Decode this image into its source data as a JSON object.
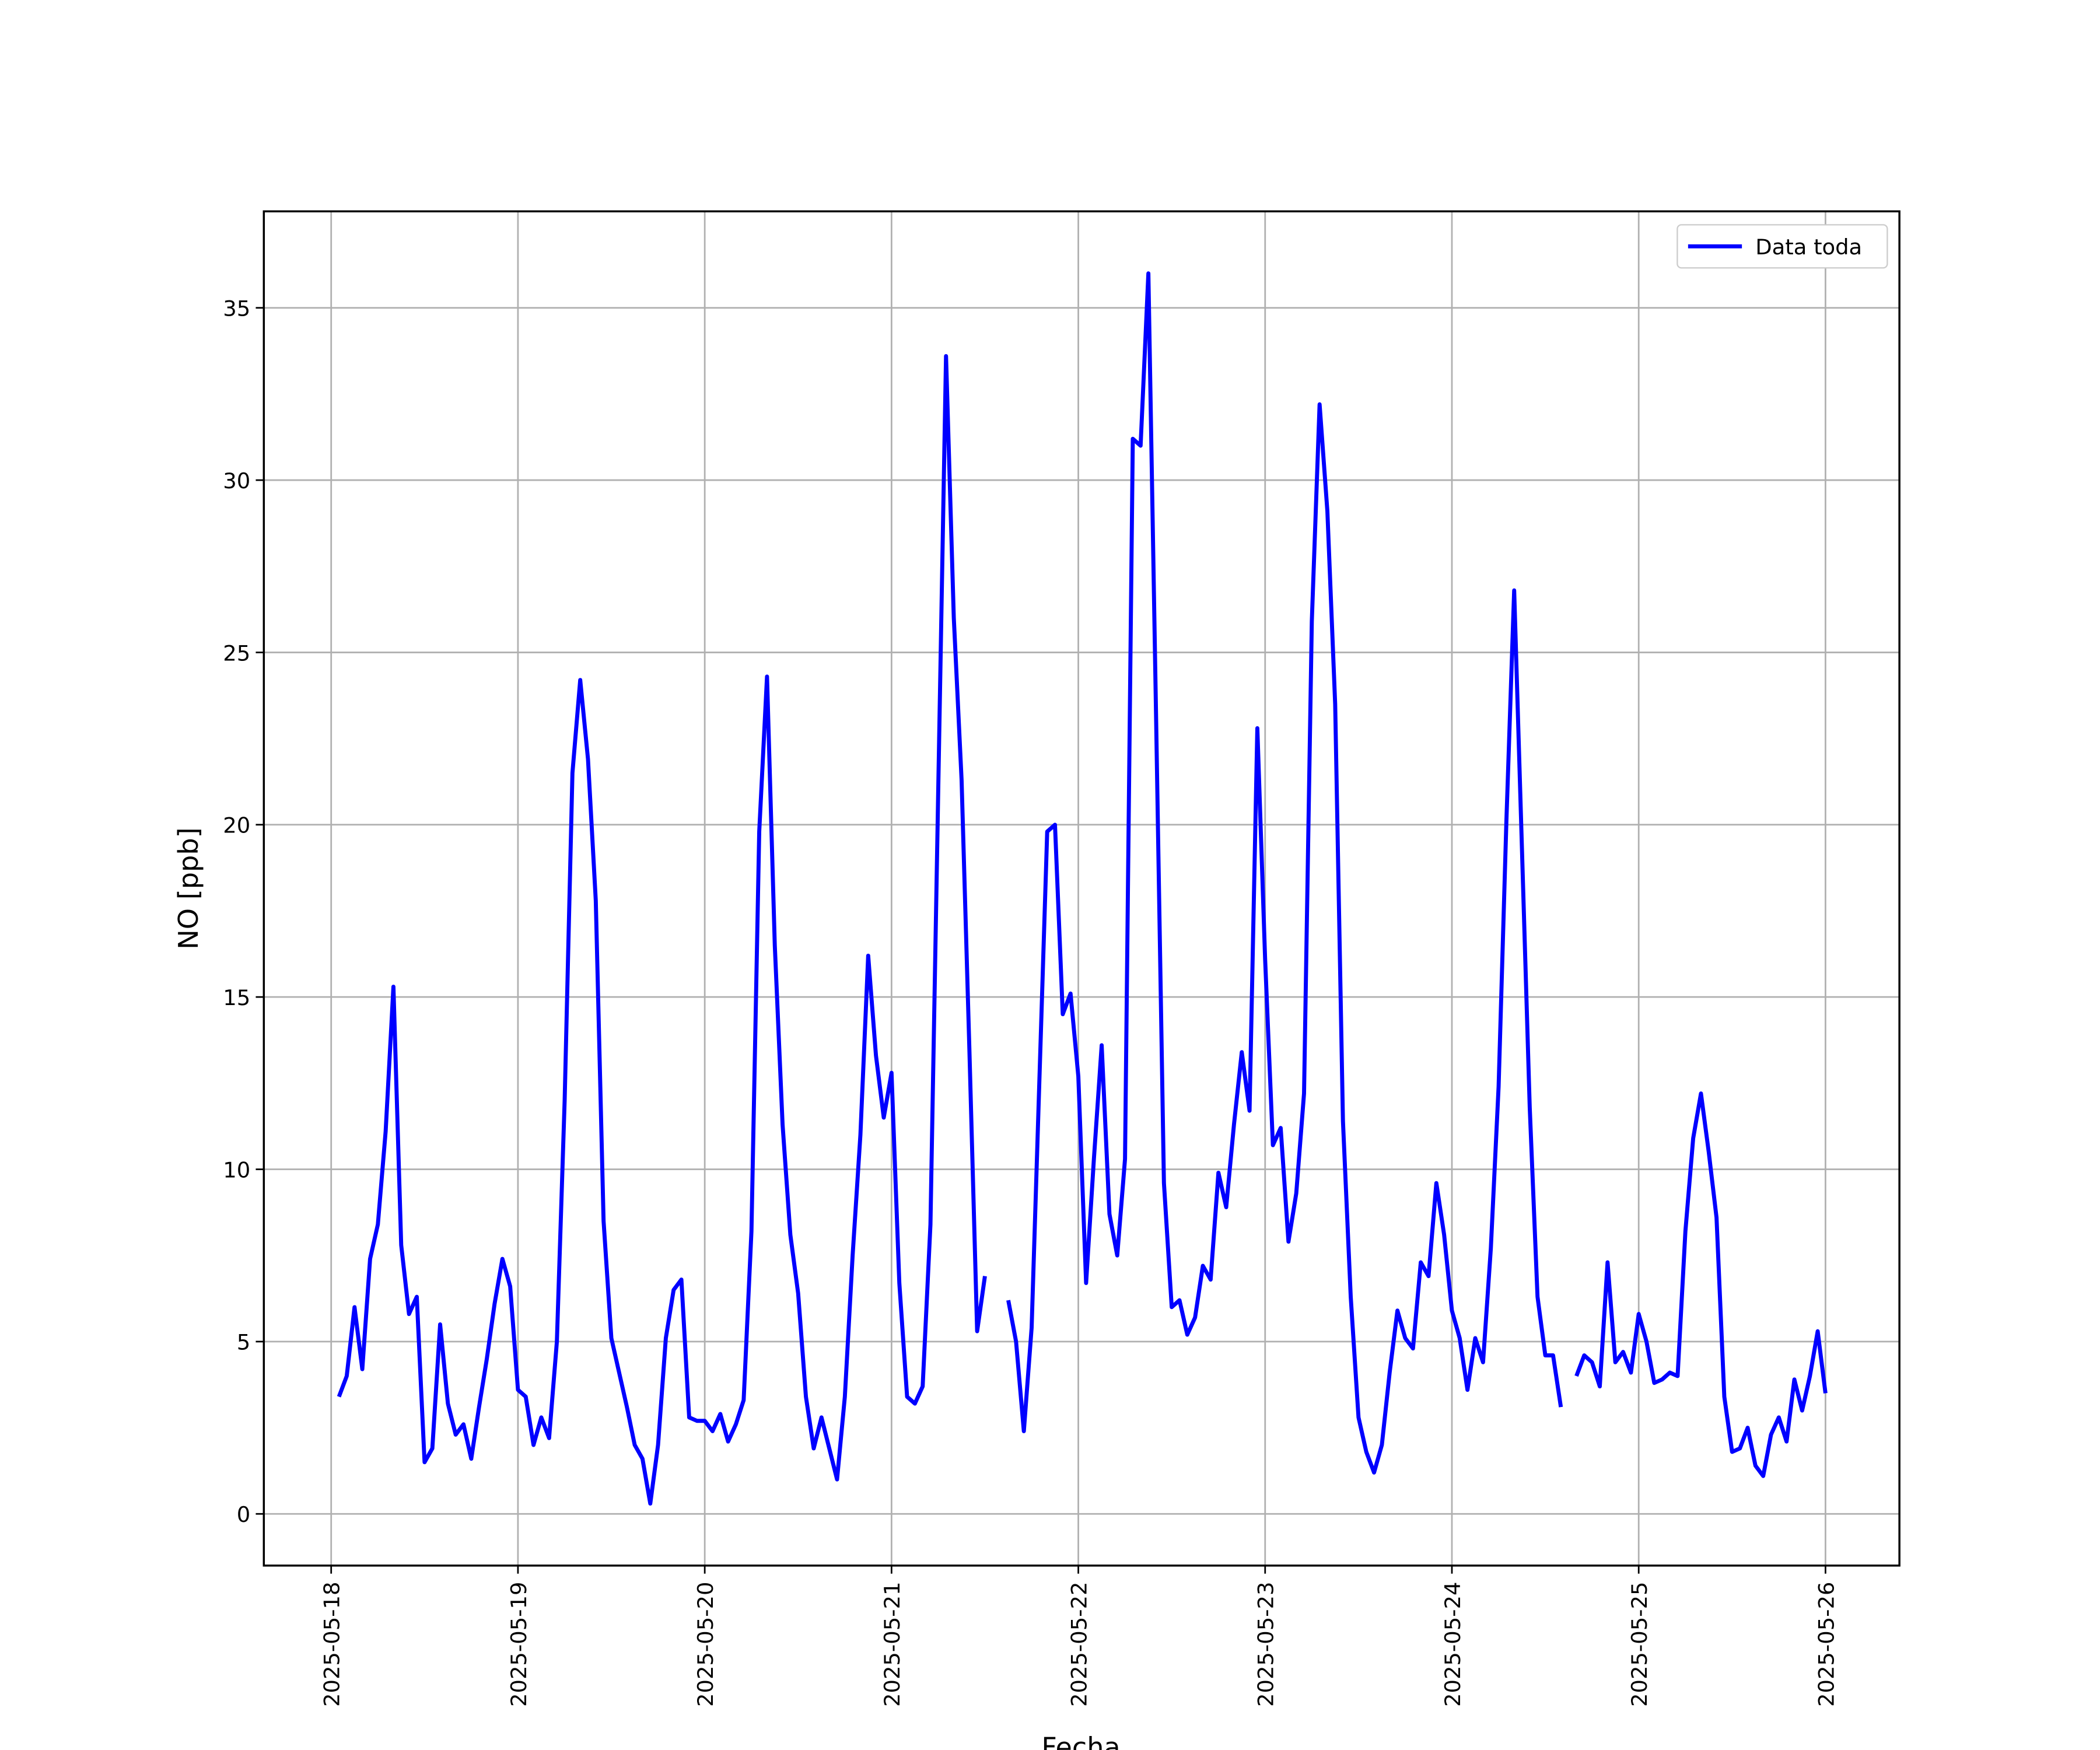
{
  "chart_data": {
    "type": "line",
    "x_label": "Fecha",
    "y_label": "NO [ppb]",
    "x": [
      "2025-05-18 01:00",
      "2025-05-18 02:00",
      "2025-05-18 03:00",
      "2025-05-18 04:00",
      "2025-05-18 05:00",
      "2025-05-18 06:00",
      "2025-05-18 07:00",
      "2025-05-18 08:00",
      "2025-05-18 09:00",
      "2025-05-18 10:00",
      "2025-05-18 11:00",
      "2025-05-18 12:00",
      "2025-05-18 13:00",
      "2025-05-18 14:00",
      "2025-05-18 15:00",
      "2025-05-18 16:00",
      "2025-05-18 17:00",
      "2025-05-18 18:00",
      "2025-05-18 19:00",
      "2025-05-18 20:00",
      "2025-05-18 21:00",
      "2025-05-18 22:00",
      "2025-05-18 23:00",
      "2025-05-19 00:00",
      "2025-05-19 01:00",
      "2025-05-19 02:00",
      "2025-05-19 03:00",
      "2025-05-19 04:00",
      "2025-05-19 05:00",
      "2025-05-19 06:00",
      "2025-05-19 07:00",
      "2025-05-19 08:00",
      "2025-05-19 09:00",
      "2025-05-19 10:00",
      "2025-05-19 11:00",
      "2025-05-19 12:00",
      "2025-05-19 13:00",
      "2025-05-19 14:00",
      "2025-05-19 15:00",
      "2025-05-19 16:00",
      "2025-05-19 17:00",
      "2025-05-19 18:00",
      "2025-05-19 19:00",
      "2025-05-19 20:00",
      "2025-05-19 21:00",
      "2025-05-19 22:00",
      "2025-05-19 23:00",
      "2025-05-20 00:00",
      "2025-05-20 01:00",
      "2025-05-20 02:00",
      "2025-05-20 03:00",
      "2025-05-20 04:00",
      "2025-05-20 05:00",
      "2025-05-20 06:00",
      "2025-05-20 07:00",
      "2025-05-20 08:00",
      "2025-05-20 09:00",
      "2025-05-20 10:00",
      "2025-05-20 11:00",
      "2025-05-20 12:00",
      "2025-05-20 13:00",
      "2025-05-20 14:00",
      "2025-05-20 15:00",
      "2025-05-20 16:00",
      "2025-05-20 17:00",
      "2025-05-20 18:00",
      "2025-05-20 19:00",
      "2025-05-20 20:00",
      "2025-05-20 21:00",
      "2025-05-20 22:00",
      "2025-05-20 23:00",
      "2025-05-21 00:00",
      "2025-05-21 01:00",
      "2025-05-21 02:00",
      "2025-05-21 03:00",
      "2025-05-21 04:00",
      "2025-05-21 05:00",
      "2025-05-21 06:00",
      "2025-05-21 07:00",
      "2025-05-21 08:00",
      "2025-05-21 09:00",
      "2025-05-21 10:00",
      "2025-05-21 11:00",
      "2025-05-21 12:00",
      "2025-05-21 13:00",
      "2025-05-21 14:00",
      "2025-05-21 15:00",
      "2025-05-21 16:00",
      "2025-05-21 17:00",
      "2025-05-21 18:00",
      "2025-05-21 19:00",
      "2025-05-21 20:00",
      "2025-05-21 21:00",
      "2025-05-21 22:00",
      "2025-05-21 23:00",
      "2025-05-22 00:00",
      "2025-05-22 01:00",
      "2025-05-22 02:00",
      "2025-05-22 03:00",
      "2025-05-22 04:00",
      "2025-05-22 05:00",
      "2025-05-22 06:00",
      "2025-05-22 07:00",
      "2025-05-22 08:00",
      "2025-05-22 09:00",
      "2025-05-22 10:00",
      "2025-05-22 11:00",
      "2025-05-22 12:00",
      "2025-05-22 13:00",
      "2025-05-22 14:00",
      "2025-05-22 15:00",
      "2025-05-22 16:00",
      "2025-05-22 17:00",
      "2025-05-22 18:00",
      "2025-05-22 19:00",
      "2025-05-22 20:00",
      "2025-05-22 21:00",
      "2025-05-22 22:00",
      "2025-05-22 23:00",
      "2025-05-23 00:00",
      "2025-05-23 01:00",
      "2025-05-23 02:00",
      "2025-05-23 03:00",
      "2025-05-23 04:00",
      "2025-05-23 05:00",
      "2025-05-23 06:00",
      "2025-05-23 07:00",
      "2025-05-23 08:00",
      "2025-05-23 09:00",
      "2025-05-23 10:00",
      "2025-05-23 11:00",
      "2025-05-23 12:00",
      "2025-05-23 13:00",
      "2025-05-23 14:00",
      "2025-05-23 15:00",
      "2025-05-23 16:00",
      "2025-05-23 17:00",
      "2025-05-23 18:00",
      "2025-05-23 19:00",
      "2025-05-23 20:00",
      "2025-05-23 21:00",
      "2025-05-23 22:00",
      "2025-05-23 23:00",
      "2025-05-24 00:00",
      "2025-05-24 01:00",
      "2025-05-24 02:00",
      "2025-05-24 03:00",
      "2025-05-24 04:00",
      "2025-05-24 05:00",
      "2025-05-24 06:00",
      "2025-05-24 07:00",
      "2025-05-24 08:00",
      "2025-05-24 09:00",
      "2025-05-24 10:00",
      "2025-05-24 11:00",
      "2025-05-24 12:00",
      "2025-05-24 13:00",
      "2025-05-24 14:00",
      "2025-05-24 15:00",
      "2025-05-24 16:00",
      "2025-05-24 17:00",
      "2025-05-24 18:00",
      "2025-05-24 19:00",
      "2025-05-24 20:00",
      "2025-05-24 21:00",
      "2025-05-24 22:00",
      "2025-05-24 23:00",
      "2025-05-25 00:00",
      "2025-05-25 01:00",
      "2025-05-25 02:00",
      "2025-05-25 03:00",
      "2025-05-25 04:00",
      "2025-05-25 05:00",
      "2025-05-25 06:00",
      "2025-05-25 07:00",
      "2025-05-25 08:00",
      "2025-05-25 09:00",
      "2025-05-25 10:00",
      "2025-05-25 11:00",
      "2025-05-25 12:00",
      "2025-05-25 13:00",
      "2025-05-25 14:00",
      "2025-05-25 15:00",
      "2025-05-25 16:00",
      "2025-05-25 17:00",
      "2025-05-25 18:00",
      "2025-05-25 19:00",
      "2025-05-25 20:00",
      "2025-05-25 21:00",
      "2025-05-25 22:00",
      "2025-05-25 23:00",
      "2025-05-26 00:00"
    ],
    "series": [
      {
        "name": "Data toda",
        "color": "#0000ff",
        "values": [
          3.4,
          4.0,
          6.0,
          4.2,
          7.4,
          8.4,
          11.1,
          15.3,
          7.8,
          5.8,
          6.3,
          1.5,
          1.9,
          5.5,
          3.2,
          2.3,
          2.6,
          1.6,
          3.1,
          4.5,
          6.1,
          7.4,
          6.6,
          3.6,
          3.4,
          2.0,
          2.8,
          2.2,
          5.0,
          12.0,
          21.5,
          24.2,
          21.9,
          17.8,
          8.5,
          5.1,
          4.1,
          3.1,
          2.0,
          1.6,
          0.3,
          2.0,
          5.1,
          6.5,
          6.8,
          2.8,
          2.7,
          2.7,
          2.4,
          2.9,
          2.1,
          2.6,
          3.3,
          8.2,
          19.8,
          24.3,
          16.5,
          11.3,
          8.1,
          6.4,
          3.4,
          1.9,
          2.8,
          1.9,
          1.0,
          3.4,
          7.5,
          11.0,
          16.2,
          13.3,
          11.5,
          12.8,
          6.7,
          3.4,
          3.2,
          3.7,
          8.4,
          21.0,
          33.6,
          26.0,
          21.3,
          13.5,
          5.3,
          6.9,
          null,
          null,
          6.2,
          5.0,
          2.4,
          5.4,
          12.6,
          19.8,
          20.0,
          14.5,
          15.1,
          12.7,
          6.7,
          10.3,
          13.6,
          8.7,
          7.5,
          10.3,
          31.2,
          31.0,
          36.0,
          23.0,
          9.6,
          6.0,
          6.2,
          5.2,
          5.7,
          7.2,
          6.8,
          9.9,
          8.9,
          11.3,
          13.4,
          11.7,
          22.8,
          16.1,
          10.7,
          11.2,
          7.9,
          9.3,
          12.2,
          25.9,
          32.2,
          29.1,
          23.5,
          11.4,
          6.3,
          2.8,
          1.8,
          1.2,
          2.0,
          4.1,
          5.9,
          5.1,
          4.8,
          7.3,
          6.9,
          9.6,
          8.1,
          5.9,
          5.1,
          3.6,
          5.1,
          4.4,
          7.7,
          12.4,
          20.1,
          26.8,
          19.3,
          11.8,
          6.3,
          4.6,
          4.6,
          3.1,
          null,
          4.0,
          4.6,
          4.4,
          3.7,
          7.3,
          4.4,
          4.7,
          4.1,
          5.8,
          5.0,
          3.8,
          3.9,
          4.1,
          4.0,
          8.2,
          10.9,
          12.2,
          10.5,
          8.6,
          3.4,
          1.8,
          1.9,
          2.5,
          1.4,
          1.1,
          2.3,
          2.8,
          2.1,
          3.9,
          3.0,
          4.0,
          5.3,
          3.5
        ]
      }
    ],
    "xlim": [
      "2025-05-17 15:21",
      "2025-05-26 09:30"
    ],
    "xticks": [
      "2025-05-18",
      "2025-05-19",
      "2025-05-20",
      "2025-05-21",
      "2025-05-22",
      "2025-05-23",
      "2025-05-24",
      "2025-05-25",
      "2025-05-26"
    ],
    "ylim": [
      -1.5,
      37.8
    ],
    "yticks": [
      0,
      5,
      10,
      15,
      20,
      25,
      30,
      35
    ],
    "grid": true,
    "legend": "upper right"
  }
}
